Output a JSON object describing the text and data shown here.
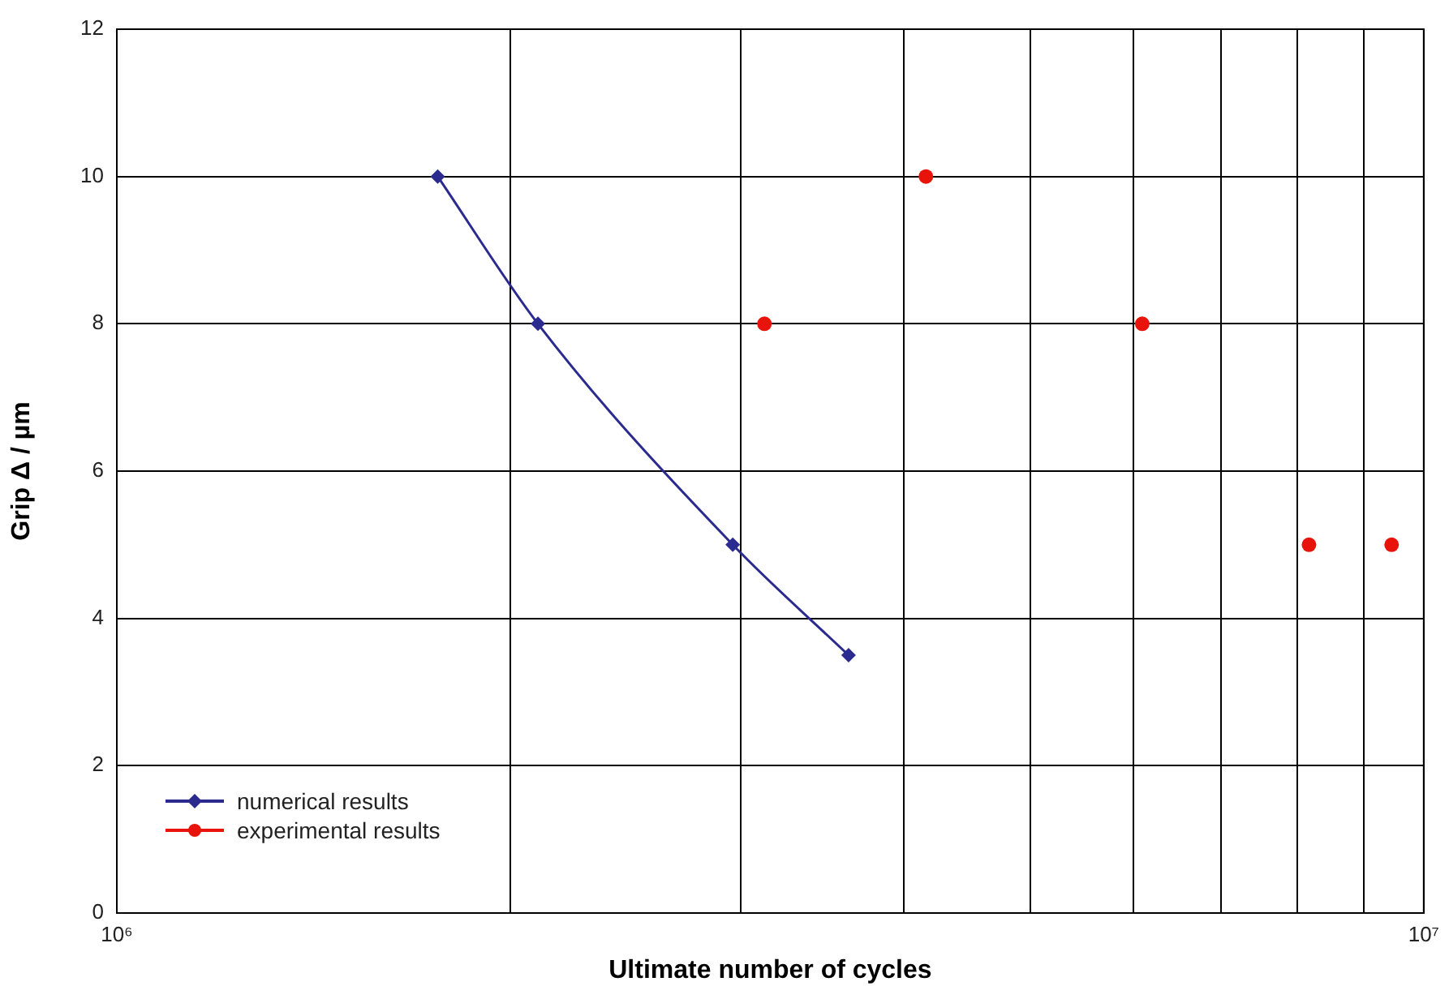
{
  "chart_data": {
    "type": "line",
    "xlabel": "Ultimate number of cycles",
    "ylabel": "Grip Δ / µm",
    "log": "x",
    "xlim": [
      1000000,
      10000000
    ],
    "xticks": [
      {
        "value": 1000000,
        "label": "10⁶"
      },
      {
        "value": 2000000,
        "label": null
      },
      {
        "value": 3000000,
        "label": null
      },
      {
        "value": 4000000,
        "label": null
      },
      {
        "value": 5000000,
        "label": null
      },
      {
        "value": 6000000,
        "label": null
      },
      {
        "value": 7000000,
        "label": null
      },
      {
        "value": 8000000,
        "label": null
      },
      {
        "value": 9000000,
        "label": null
      },
      {
        "value": 10000000,
        "label": "10⁷"
      }
    ],
    "ylim": [
      0,
      12
    ],
    "yticks": [
      0,
      2,
      4,
      6,
      8,
      10,
      12
    ],
    "grid": true,
    "legend": "bottom left",
    "series": [
      {
        "name": "numerical results",
        "type": "line",
        "color": "#2b2b8f",
        "marker": "diamond",
        "x": [
          1760000,
          2100000,
          2960000,
          3630000
        ],
        "values": [
          10,
          8,
          5,
          3.5
        ]
      },
      {
        "name": "experimental results",
        "type": "scatter",
        "color": "#e8140c",
        "marker": "circle",
        "x": [
          3130000,
          4160000,
          6090000,
          8170000,
          9450000
        ],
        "values": [
          8,
          10,
          8,
          5,
          5
        ]
      }
    ]
  }
}
